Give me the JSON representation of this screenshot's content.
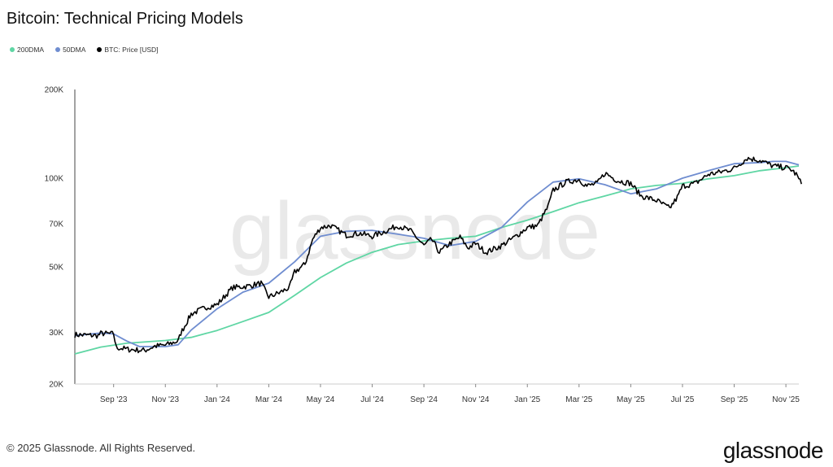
{
  "chart_data": {
    "type": "line",
    "title": "Bitcoin: Technical Pricing Models",
    "y_scale": "log",
    "ylim": [
      20000,
      200000
    ],
    "y_ticks": [
      {
        "value": 200000,
        "label": "200K"
      },
      {
        "value": 100000,
        "label": "100K"
      },
      {
        "value": 70000,
        "label": "70K"
      },
      {
        "value": 50000,
        "label": "50K"
      },
      {
        "value": 30000,
        "label": "30K"
      },
      {
        "value": 20000,
        "label": "20K"
      }
    ],
    "x_ticks": [
      "Sep '23",
      "Nov '23",
      "Jan '24",
      "Mar '24",
      "May '24",
      "Jul '24",
      "Sep '24",
      "Nov '24",
      "Jan '25",
      "Mar '25",
      "May '25",
      "Jul '25",
      "Sep '25",
      "Nov '25"
    ],
    "x_range_months": [
      -0.75,
      13.25
    ],
    "series": [
      {
        "name": "200DMA",
        "color": "#5fd6a4",
        "points": [
          [
            -0.75,
            25300
          ],
          [
            -0.25,
            26700
          ],
          [
            0.25,
            27500
          ],
          [
            1,
            28100
          ],
          [
            1.5,
            28800
          ],
          [
            2,
            30400
          ],
          [
            2.5,
            32600
          ],
          [
            3,
            35000
          ],
          [
            3.5,
            40000
          ],
          [
            4,
            46000
          ],
          [
            4.5,
            51500
          ],
          [
            5,
            56000
          ],
          [
            5.5,
            59500
          ],
          [
            6,
            61200
          ],
          [
            6.5,
            62500
          ],
          [
            7,
            63500
          ],
          [
            7.5,
            68000
          ],
          [
            8,
            72000
          ],
          [
            8.5,
            77000
          ],
          [
            9,
            82500
          ],
          [
            9.5,
            87000
          ],
          [
            10,
            92000
          ],
          [
            10.5,
            94500
          ],
          [
            11,
            96000
          ],
          [
            11.5,
            99500
          ],
          [
            12,
            102000
          ],
          [
            12.5,
            106000
          ],
          [
            13,
            108500
          ],
          [
            13.25,
            110000
          ]
        ]
      },
      {
        "name": "50DMA",
        "color": "#6f8dd0",
        "points": [
          [
            -0.75,
            29200
          ],
          [
            -0.25,
            29800
          ],
          [
            0,
            29600
          ],
          [
            0.25,
            28000
          ],
          [
            0.5,
            26800
          ],
          [
            1,
            26800
          ],
          [
            1.25,
            27200
          ],
          [
            1.5,
            30500
          ],
          [
            2,
            36000
          ],
          [
            2.5,
            41000
          ],
          [
            3,
            44000
          ],
          [
            3.5,
            52000
          ],
          [
            4,
            63500
          ],
          [
            4.5,
            66000
          ],
          [
            5,
            66500
          ],
          [
            5.5,
            64500
          ],
          [
            6,
            62500
          ],
          [
            6.5,
            59000
          ],
          [
            7,
            61000
          ],
          [
            7.5,
            68000
          ],
          [
            8,
            83000
          ],
          [
            8.5,
            97000
          ],
          [
            9,
            99500
          ],
          [
            9.5,
            95000
          ],
          [
            10,
            88500
          ],
          [
            10.5,
            92000
          ],
          [
            11,
            100000
          ],
          [
            11.5,
            106000
          ],
          [
            12,
            112000
          ],
          [
            12.5,
            113000
          ],
          [
            12.75,
            114000
          ],
          [
            13,
            114000
          ],
          [
            13.25,
            111000
          ]
        ]
      },
      {
        "name": "BTC: Price [USD]",
        "color": "#000000",
        "points": [
          [
            -0.75,
            29400
          ],
          [
            -0.5,
            29300
          ],
          [
            -0.3,
            29200
          ],
          [
            -0.25,
            29700
          ],
          [
            0,
            29600
          ],
          [
            0.05,
            26600
          ],
          [
            0.3,
            26200
          ],
          [
            0.6,
            26000
          ],
          [
            0.8,
            26900
          ],
          [
            1,
            27100
          ],
          [
            1.25,
            28000
          ],
          [
            1.3,
            29800
          ],
          [
            1.5,
            34600
          ],
          [
            1.8,
            36500
          ],
          [
            2,
            37200
          ],
          [
            2.3,
            42500
          ],
          [
            2.6,
            43000
          ],
          [
            2.85,
            44000
          ],
          [
            3,
            39500
          ],
          [
            3.2,
            40800
          ],
          [
            3.4,
            42500
          ],
          [
            3.5,
            48000
          ],
          [
            3.7,
            51000
          ],
          [
            3.85,
            62000
          ],
          [
            4,
            68000
          ],
          [
            4.2,
            69000
          ],
          [
            4.5,
            64000
          ],
          [
            4.75,
            65000
          ],
          [
            5,
            63500
          ],
          [
            5.25,
            66000
          ],
          [
            5.5,
            69000
          ],
          [
            5.75,
            66000
          ],
          [
            6,
            59000
          ],
          [
            6.15,
            62000
          ],
          [
            6.3,
            56000
          ],
          [
            6.5,
            60000
          ],
          [
            6.7,
            63000
          ],
          [
            6.85,
            58000
          ],
          [
            7,
            60000
          ],
          [
            7.2,
            56000
          ],
          [
            7.5,
            59000
          ],
          [
            7.75,
            63000
          ],
          [
            8,
            68000
          ],
          [
            8.2,
            69000
          ],
          [
            8.4,
            80000
          ],
          [
            8.5,
            91000
          ],
          [
            8.75,
            97000
          ],
          [
            9,
            99000
          ],
          [
            9.15,
            94000
          ],
          [
            9.35,
            96000
          ],
          [
            9.5,
            104000
          ],
          [
            9.75,
            98000
          ],
          [
            10,
            96000
          ],
          [
            10.2,
            87000
          ],
          [
            10.5,
            84000
          ],
          [
            10.75,
            79000
          ],
          [
            10.9,
            86000
          ],
          [
            11,
            94000
          ],
          [
            11.25,
            96000
          ],
          [
            11.5,
            103000
          ],
          [
            11.75,
            105000
          ],
          [
            12,
            108000
          ],
          [
            12.25,
            117000
          ],
          [
            12.5,
            115000
          ],
          [
            12.75,
            110000
          ],
          [
            13,
            108500
          ],
          [
            13.1,
            107000
          ],
          [
            13.2,
            103000
          ],
          [
            13.3,
            95500
          ]
        ]
      }
    ],
    "watermark": "glassnode"
  },
  "legend": [
    {
      "label": "200DMA",
      "color": "#5fd6a4"
    },
    {
      "label": "50DMA",
      "color": "#6f8dd0"
    },
    {
      "label": "BTC: Price [USD]",
      "color": "#000000"
    }
  ],
  "footer": "© 2025 Glassnode. All Rights Reserved.",
  "brand": "glassnode"
}
